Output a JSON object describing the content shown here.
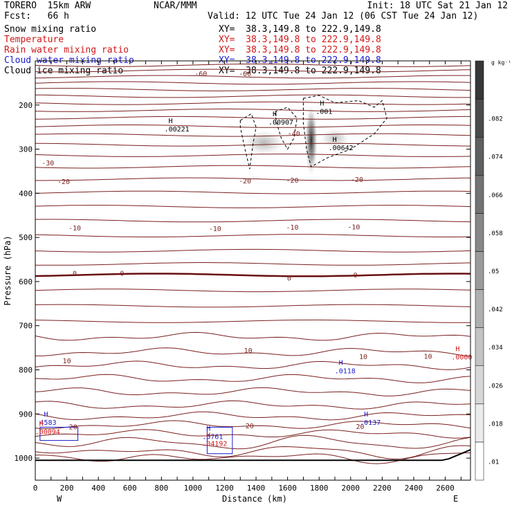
{
  "header": {
    "model": "TORERO  15km ARW",
    "center": "NCAR/MMM",
    "init": "Init: 18 UTC Sat 21 Jan 12",
    "fcst": "Fcst:   66 h",
    "valid": "Valid: 12 UTC Tue 24 Jan 12 (06 CST Tue 24 Jan 12)"
  },
  "fields": [
    {
      "name": "Snow mixing ratio",
      "color": "#000000",
      "xy": "XY=  38.3,149.8 to 222.9,149.8"
    },
    {
      "name": "Temperature",
      "color": "#d01818",
      "xy": "XY=  38.3,149.8 to 222.9,149.8"
    },
    {
      "name": "Rain water mixing ratio",
      "color": "#d01818",
      "xy": "XY=  38.3,149.8 to 222.9,149.8"
    },
    {
      "name": "Cloud water mixing ratio",
      "color": "#1a1acc",
      "xy": "XY=  38.3,149.8 to 222.9,149.8"
    },
    {
      "name": "Cloud ice mixing ratio",
      "color": "#000000",
      "xy": "XY=  38.3,149.8 to 222.9,149.8"
    }
  ],
  "colorbar": {
    "units": "g kg⁻¹",
    "levels": [
      ".01",
      ".018",
      ".026",
      ".034",
      ".042",
      ".05",
      ".058",
      ".066",
      ".074",
      ".082"
    ]
  },
  "chart_data": {
    "type": "contour",
    "xlabel": "Distance (km)",
    "ylabel": "Pressure (hPa)",
    "xlim": [
      0,
      2760
    ],
    "ylim": [
      1050,
      100
    ],
    "x_ticks": [
      0,
      100,
      200,
      300,
      400,
      500,
      600,
      700,
      800,
      900,
      1000,
      1100,
      1200,
      1300,
      1400,
      1500,
      1600,
      1700,
      1800,
      1900,
      2000,
      2100,
      2200,
      2300,
      2400,
      2500,
      2600,
      2700
    ],
    "x_tick_labels": [
      "0",
      "200",
      "400",
      "600",
      "800",
      "1000",
      "1200",
      "1400",
      "1600",
      "1800",
      "2000",
      "2200",
      "2400",
      "2600"
    ],
    "y_ticks": [
      200,
      300,
      400,
      500,
      600,
      700,
      800,
      900,
      1000
    ],
    "y_tick_labels": [
      "200",
      "300",
      "400",
      "500",
      "600",
      "700",
      "800",
      "900",
      "1000"
    ],
    "west_label": "W",
    "east_label": "E",
    "temperature_isotherms": [
      {
        "label": "-60",
        "label_points": [
          [
            1050,
            130
          ],
          [
            1330,
            130
          ]
        ]
      },
      {
        "label": "-40",
        "label_points": [
          [
            1640,
            265
          ]
        ]
      },
      {
        "label": "-30",
        "label_points": [
          [
            80,
            332
          ]
        ]
      },
      {
        "label": "-20",
        "label_points": [
          [
            180,
            374
          ],
          [
            1330,
            373
          ],
          [
            1630,
            371
          ],
          [
            2040,
            370
          ]
        ]
      },
      {
        "label": "-10",
        "label_points": [
          [
            250,
            479
          ],
          [
            1140,
            481
          ],
          [
            1630,
            478
          ],
          [
            2020,
            477
          ]
        ]
      },
      {
        "label": "0",
        "label_points": [
          [
            250,
            582
          ],
          [
            550,
            582
          ],
          [
            1610,
            593
          ],
          [
            2030,
            586
          ]
        ]
      },
      {
        "label": "10",
        "label_points": [
          [
            200,
            780
          ],
          [
            1350,
            757
          ],
          [
            2080,
            771
          ],
          [
            2490,
            770
          ]
        ]
      },
      {
        "label": "20",
        "label_points": [
          [
            240,
            930
          ],
          [
            1360,
            928
          ],
          [
            2060,
            929
          ]
        ]
      }
    ],
    "extrema": [
      {
        "type": "H",
        "field": "snow",
        "value": ".00221",
        "x": 880,
        "y": 247
      },
      {
        "type": "H",
        "field": "snow",
        "value": ".00907",
        "x": 1540,
        "y": 232
      },
      {
        "type": "H",
        "field": "snow",
        "value": ".001",
        "x": 1840,
        "y": 207
      },
      {
        "type": "H",
        "field": "snow",
        "value": ".00642",
        "x": 1920,
        "y": 290
      },
      {
        "type": "H",
        "field": "cloud water",
        "value": ".0118",
        "x": 1960,
        "y": 795
      },
      {
        "type": "H",
        "field": "rain",
        "value": ".0000",
        "x": 2700,
        "y": 764
      },
      {
        "type": "H",
        "field": "cloud water",
        "value": "4583",
        "x": 90,
        "y": 912
      },
      {
        "type": "H",
        "field": "rain",
        "value": ".00094",
        "x": 60,
        "y": 933
      },
      {
        "type": "H",
        "field": "cloud water",
        "value": ".0137",
        "x": 2120,
        "y": 912
      },
      {
        "type": "H",
        "field": "cloud water",
        "value": ".5761",
        "x": 1120,
        "y": 944
      },
      {
        "type": "H",
        "field": "rain",
        "value": ".04192",
        "x": 1120,
        "y": 960
      }
    ],
    "shaded_maximum": {
      "field": "cloud ice",
      "x": 1750,
      "p_range": [
        210,
        350
      ],
      "max": ">.082"
    }
  }
}
